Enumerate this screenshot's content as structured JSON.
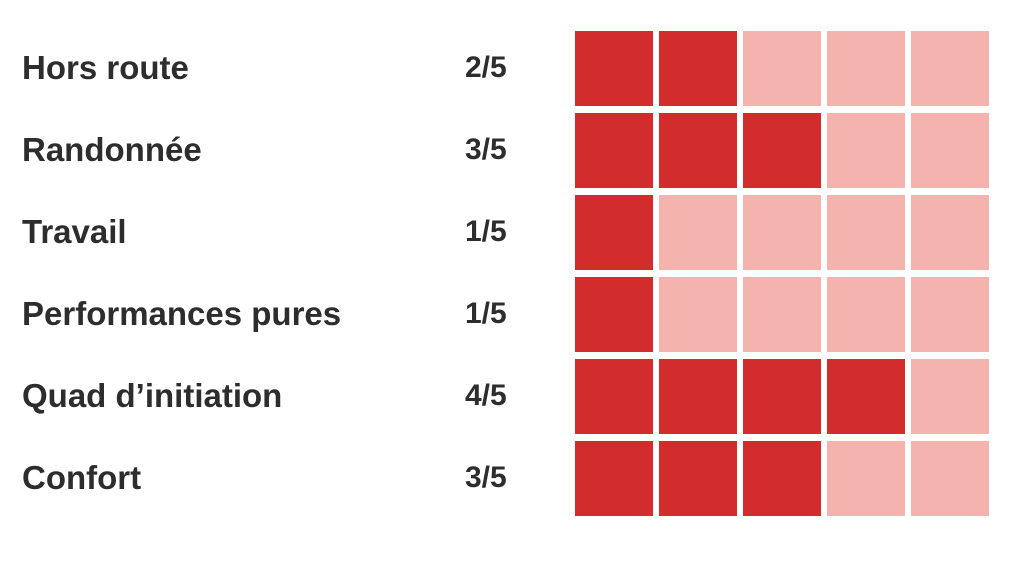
{
  "chart_data": {
    "type": "heatmap",
    "title": "",
    "categories": [
      "Hors route",
      "Randonnée",
      "Travail",
      "Performances pures",
      "Quad d’initiation",
      "Confort"
    ],
    "values": [
      2,
      3,
      1,
      1,
      4,
      3
    ],
    "value_labels": [
      "2/5",
      "3/5",
      "1/5",
      "1/5",
      "4/5",
      "3/5"
    ],
    "max_value": 5,
    "cells_per_row": 5,
    "legend": "none",
    "grid": "off",
    "colors": {
      "filled": "#d32c2c",
      "empty": "#f5b3ae"
    }
  },
  "rows": [
    {
      "label": "Hors route",
      "score_label": "2/5",
      "score": 2,
      "max": 5
    },
    {
      "label": "Randonnée",
      "score_label": "3/5",
      "score": 3,
      "max": 5
    },
    {
      "label": "Travail",
      "score_label": "1/5",
      "score": 1,
      "max": 5
    },
    {
      "label": "Performances pures",
      "score_label": "1/5",
      "score": 1,
      "max": 5
    },
    {
      "label": "Quad d’initiation",
      "score_label": "4/5",
      "score": 4,
      "max": 5
    },
    {
      "label": "Confort",
      "score_label": "3/5",
      "score": 3,
      "max": 5
    }
  ],
  "colors": {
    "filled": "#d32c2c",
    "empty": "#f5b3ae",
    "text": "#2d2d2d",
    "background": "#ffffff"
  }
}
